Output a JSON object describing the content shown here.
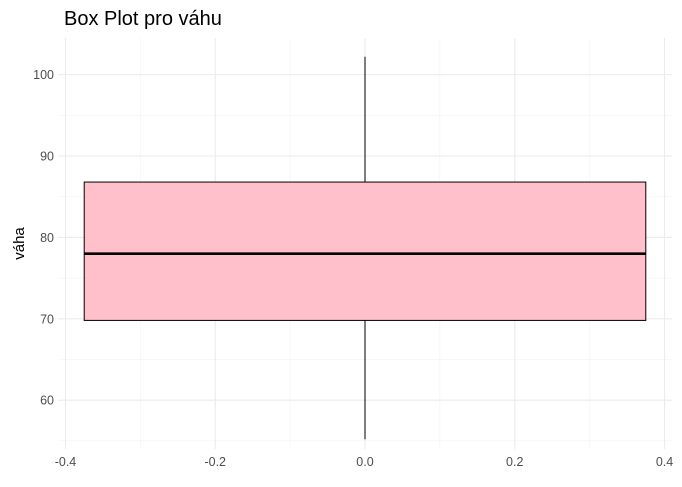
{
  "chart_data": {
    "type": "box",
    "title": "Box Plot pro váhu",
    "xlabel": "",
    "ylabel": "váha",
    "xlim": [
      -0.41,
      0.41
    ],
    "ylim": [
      54,
      104.5
    ],
    "x_ticks": [
      -0.4,
      -0.2,
      0.0,
      0.2,
      0.4
    ],
    "x_tick_labels": [
      "-0.4",
      "-0.2",
      "0.0",
      "0.2",
      "0.4"
    ],
    "y_ticks": [
      60,
      70,
      80,
      90,
      100
    ],
    "y_tick_labels": [
      "60",
      "70",
      "80",
      "90",
      "100"
    ],
    "grid": true,
    "box": {
      "x_center": 0.0,
      "x_min": -0.375,
      "x_max": 0.375,
      "whisker_low": 55.2,
      "q1": 69.8,
      "median": 78.0,
      "q3": 86.8,
      "whisker_high": 102.2
    },
    "colors": {
      "box_fill": "#FFC0CB",
      "box_stroke": "#000000",
      "grid_major": "#EBEBEB",
      "grid_minor": "#F3F3F3",
      "tick_text": "#4D4D4D"
    }
  }
}
